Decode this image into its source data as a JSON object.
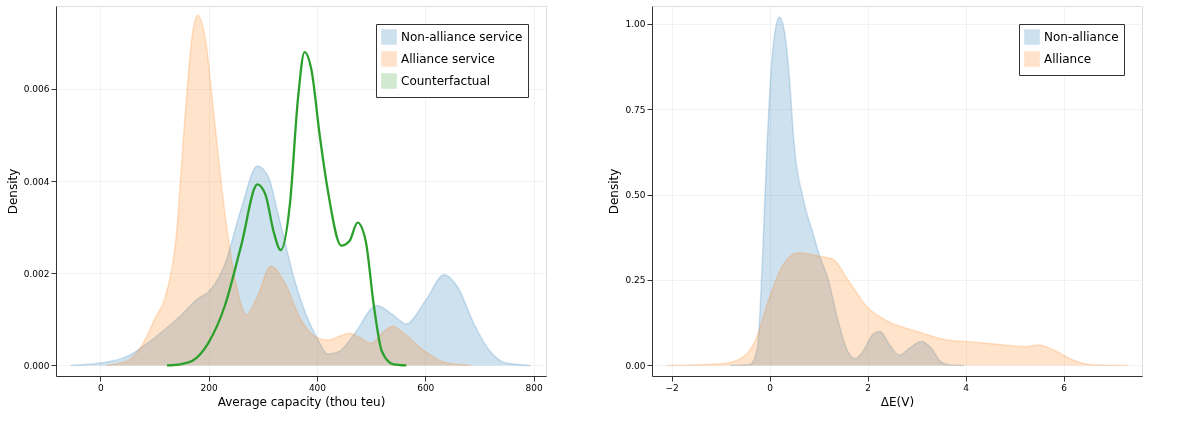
{
  "chart_data": [
    {
      "type": "area",
      "xlabel": "Average capacity (thou teu)",
      "ylabel": "Density",
      "xlim": [
        -82,
        823
      ],
      "ylim": [
        -0.00023,
        0.0078
      ],
      "xticks": [
        0,
        200,
        400,
        600,
        800
      ],
      "yticks": [
        {
          "value": 0,
          "label": "0.000"
        },
        {
          "value": 0.002,
          "label": "0.002"
        },
        {
          "value": 0.004,
          "label": "0.004"
        },
        {
          "value": 0.006,
          "label": "0.006"
        }
      ],
      "grid": true,
      "legend": "top right",
      "series": [
        {
          "name": "Non-alliance service",
          "color": "#1f77b4",
          "x": [
            -55,
            0,
            50,
            100,
            150,
            180,
            200,
            230,
            260,
            290,
            310,
            330,
            360,
            380,
            400,
            420,
            440,
            470,
            510,
            540,
            565,
            600,
            635,
            660,
            690,
            720,
            750,
            795
          ],
          "values": [
            0,
            5e-05,
            0.0002,
            0.0006,
            0.0011,
            0.00145,
            0.0016,
            0.0022,
            0.0034,
            0.00433,
            0.0041,
            0.0032,
            0.0018,
            0.0011,
            0.0006,
            0.00025,
            0.0003,
            0.0007,
            0.0013,
            0.0011,
            0.0009,
            0.0014,
            0.00197,
            0.0017,
            0.0009,
            0.0003,
            5e-05,
            0
          ]
        },
        {
          "name": "Alliance service",
          "color": "#ff7f0e",
          "x": [
            10,
            50,
            80,
            100,
            120,
            140,
            155,
            170,
            180,
            195,
            210,
            230,
            250,
            270,
            290,
            315,
            340,
            370,
            400,
            420,
            445,
            460,
            480,
            500,
            520,
            540,
            560,
            600,
            640,
            685
          ],
          "values": [
            0,
            0.0001,
            0.0005,
            0.001,
            0.0015,
            0.0028,
            0.0052,
            0.0072,
            0.0076,
            0.007,
            0.0054,
            0.0033,
            0.0018,
            0.0011,
            0.0015,
            0.00215,
            0.0018,
            0.001,
            0.0006,
            0.00055,
            0.00065,
            0.0007,
            0.0006,
            0.00048,
            0.0007,
            0.00085,
            0.0007,
            0.0003,
            5e-05,
            0
          ]
        },
        {
          "name": "Counterfactual",
          "type": "line",
          "color": "#2ca02c",
          "x": [
            123,
            150,
            170,
            200,
            230,
            260,
            290,
            305,
            320,
            333,
            350,
            365,
            377,
            390,
            405,
            420,
            445,
            460,
            475,
            490,
            505,
            520,
            540,
            565
          ],
          "values": [
            0,
            3e-05,
            0.0001,
            0.0005,
            0.0013,
            0.0026,
            0.00393,
            0.0037,
            0.0029,
            0.0025,
            0.0035,
            0.0058,
            0.0068,
            0.0064,
            0.005,
            0.0038,
            0.0026,
            0.0027,
            0.0031,
            0.0027,
            0.0013,
            0.0003,
            3e-05,
            0
          ]
        }
      ]
    },
    {
      "type": "area",
      "xlabel": "ΔE(V)",
      "ylabel": "Density",
      "xlim": [
        -2.4,
        7.6
      ],
      "ylim": [
        -0.031,
        1.052
      ],
      "xticks": [
        {
          "value": -2,
          "label": "−2"
        },
        0,
        2,
        4,
        6
      ],
      "yticks": [
        {
          "value": 0,
          "label": "0.00"
        },
        {
          "value": 0.25,
          "label": "0.25"
        },
        {
          "value": 0.5,
          "label": "0.50"
        },
        {
          "value": 0.75,
          "label": "0.75"
        },
        {
          "value": 1,
          "label": "1.00"
        }
      ],
      "grid": true,
      "legend": "top right",
      "series": [
        {
          "name": "Non-alliance",
          "color": "#1f77b4",
          "x": [
            -0.8,
            -0.4,
            -0.25,
            -0.15,
            -0.05,
            0.05,
            0.2,
            0.3,
            0.4,
            0.5,
            0.7,
            0.9,
            1.0,
            1.2,
            1.4,
            1.6,
            1.75,
            1.9,
            2.1,
            2.25,
            2.45,
            2.65,
            2.85,
            3.1,
            3.3,
            3.5,
            3.7,
            3.97
          ],
          "values": [
            0,
            0.003,
            0.05,
            0.3,
            0.65,
            0.9,
            1.02,
            0.98,
            0.85,
            0.65,
            0.48,
            0.38,
            0.33,
            0.25,
            0.13,
            0.04,
            0.02,
            0.04,
            0.09,
            0.1,
            0.06,
            0.03,
            0.05,
            0.07,
            0.05,
            0.01,
            0.001,
            0
          ]
        },
        {
          "name": "Alliance",
          "color": "#ff7f0e",
          "x": [
            -2.1,
            -1.0,
            -0.6,
            -0.3,
            0,
            0.3,
            0.6,
            1.0,
            1.3,
            1.6,
            2.0,
            2.4,
            3.0,
            3.6,
            4.2,
            4.8,
            5.2,
            5.5,
            5.8,
            6.2,
            6.6,
            7.3
          ],
          "values": [
            0,
            0.005,
            0.02,
            0.07,
            0.2,
            0.3,
            0.33,
            0.32,
            0.31,
            0.25,
            0.17,
            0.13,
            0.1,
            0.075,
            0.068,
            0.06,
            0.055,
            0.06,
            0.045,
            0.015,
            0.002,
            0
          ]
        }
      ]
    }
  ]
}
